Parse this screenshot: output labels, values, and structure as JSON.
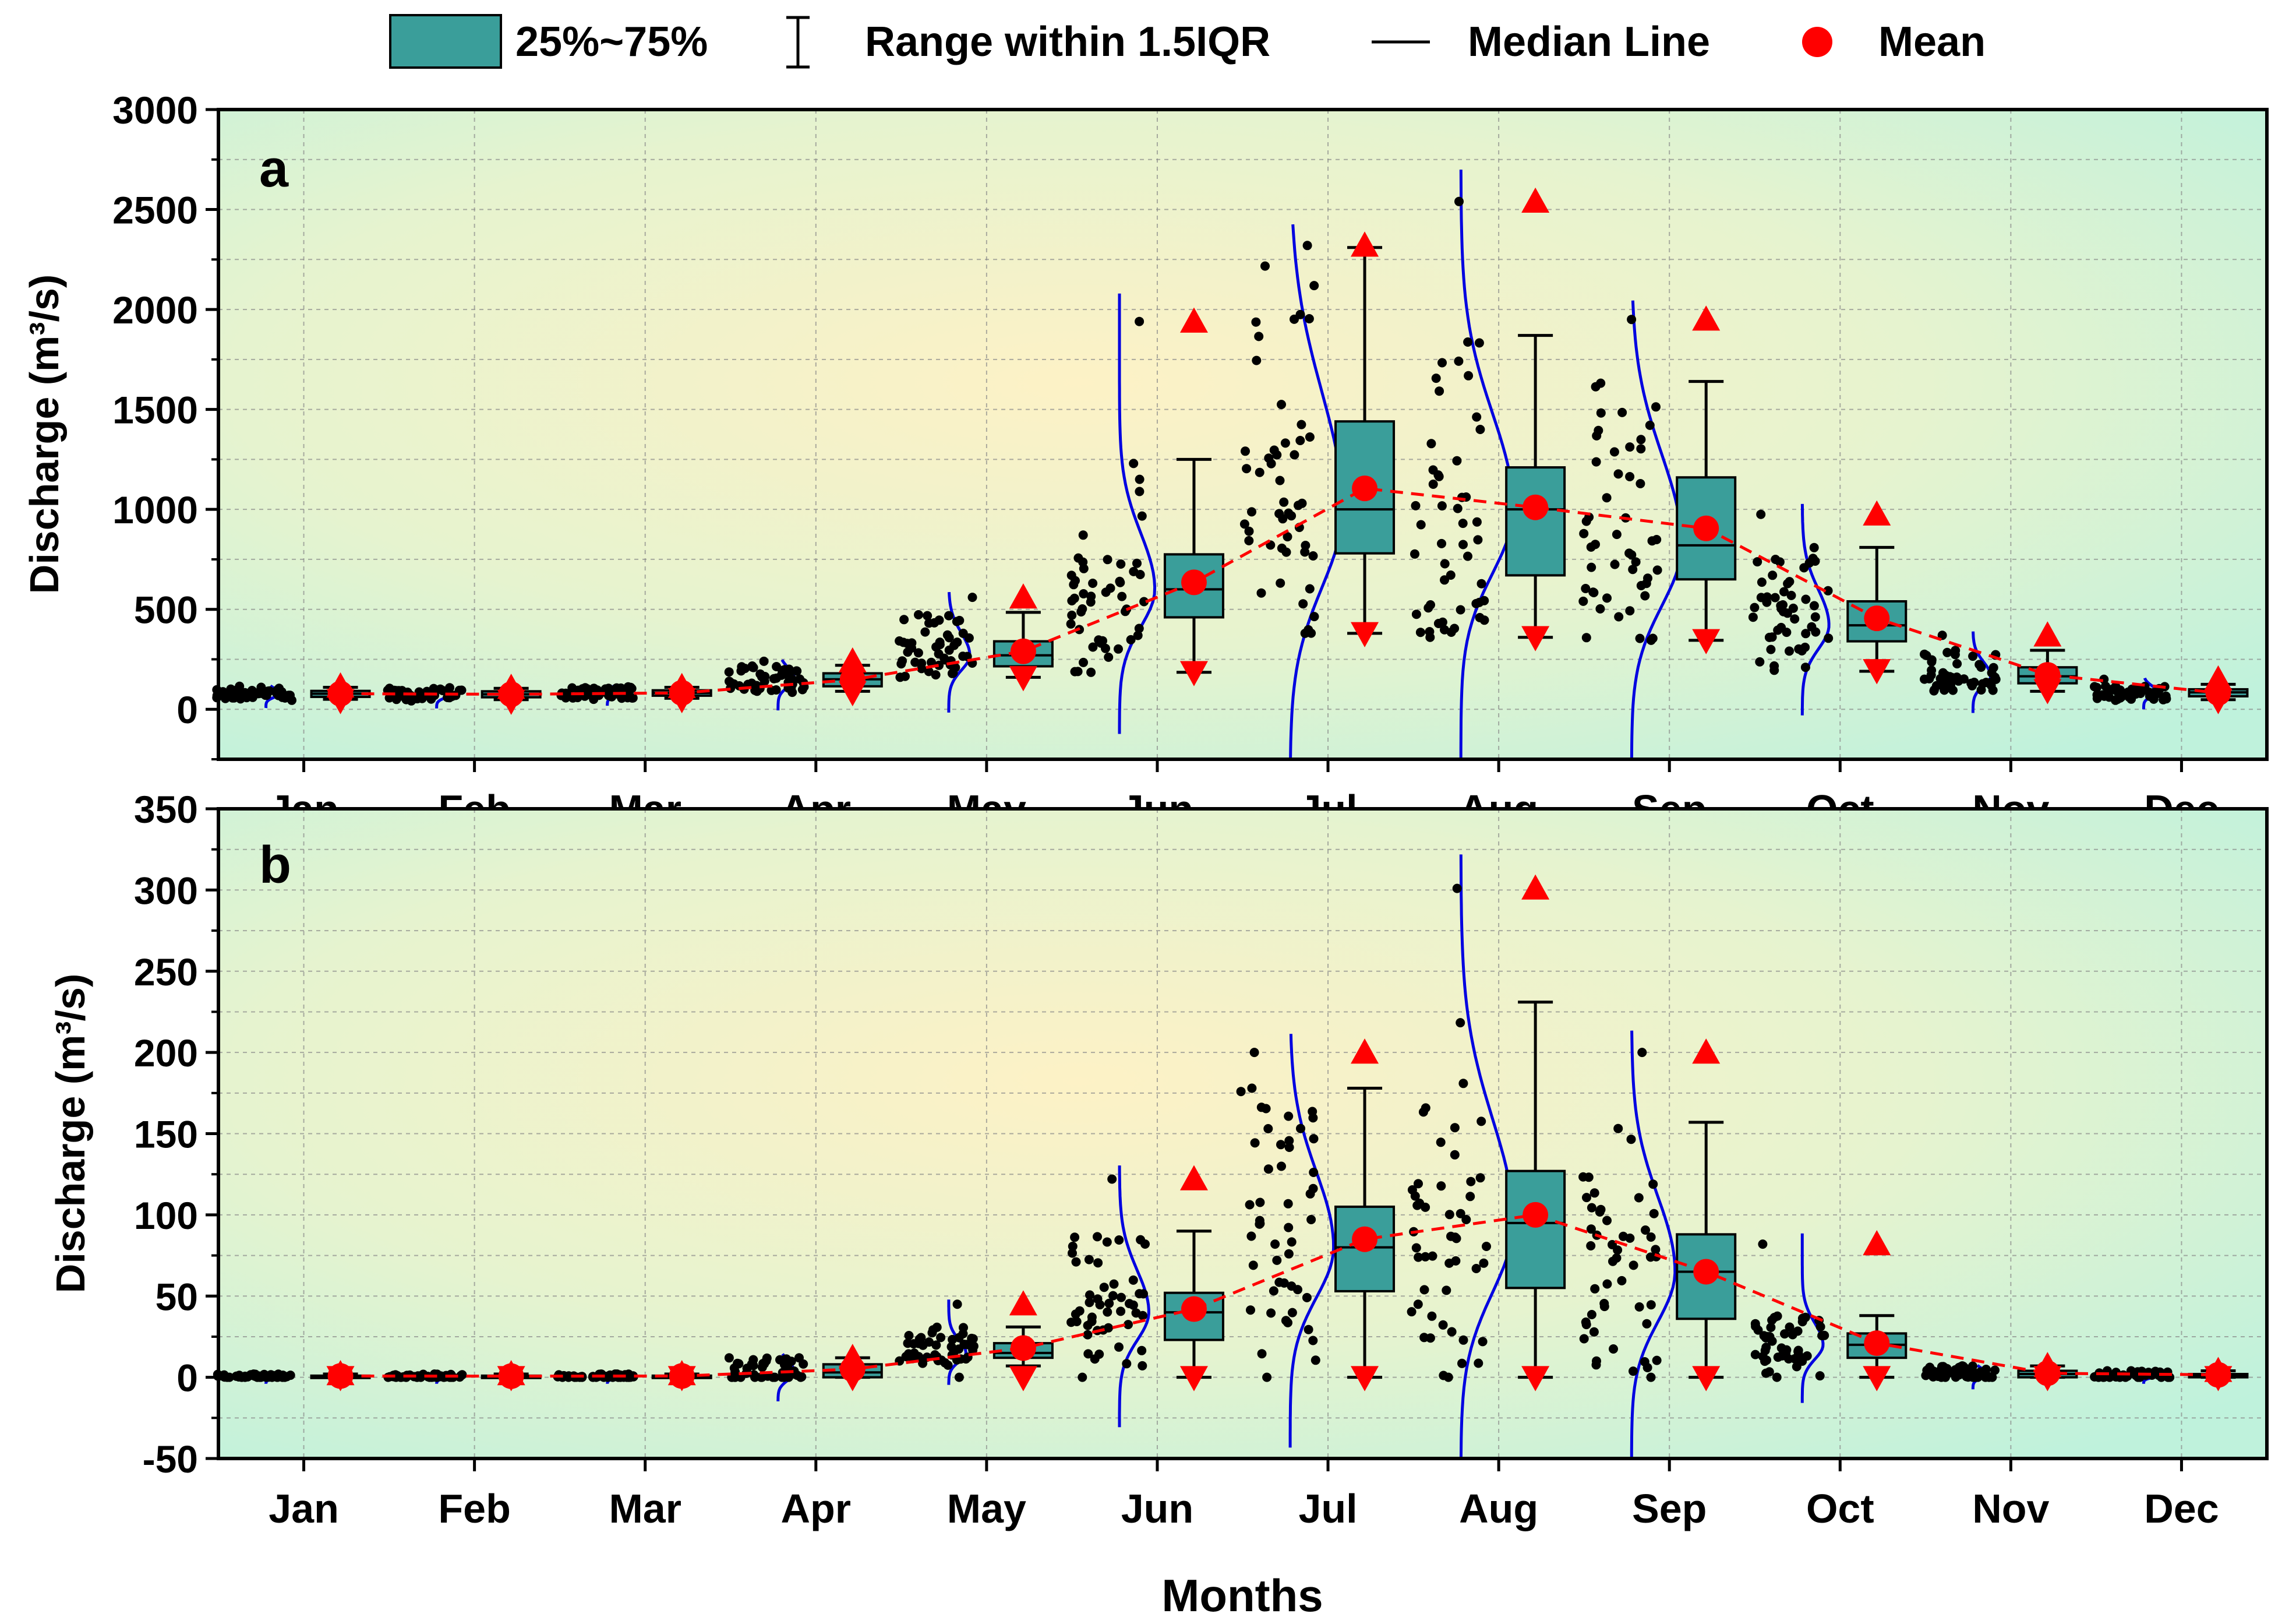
{
  "legend": {
    "box_label": "25%~75%",
    "whisker_label": "Range within 1.5IQR",
    "median_label": "Median Line",
    "mean_label": "Mean"
  },
  "colors": {
    "box": "#3a9e9a",
    "mean": "#ff0000",
    "curve": "#0000e0",
    "trend": "#ff0000",
    "bg_center": "#fdf2c6",
    "bg_edge": "#bff2dc"
  },
  "chart_data": [
    {
      "type": "box",
      "panel_label": "a",
      "title": "",
      "xlabel": "Months",
      "ylabel": "Discharge (m³/s)",
      "ylim": [
        -250,
        3000
      ],
      "yticks": [
        0,
        500,
        1000,
        1500,
        2000,
        2500,
        3000
      ],
      "categories": [
        "Jan",
        "Feb",
        "Mar",
        "Apr",
        "May",
        "Jun",
        "Jul",
        "Aug",
        "Sep",
        "Oct",
        "Nov",
        "Dec"
      ],
      "q1": [
        62,
        60,
        68,
        115,
        215,
        460,
        780,
        670,
        650,
        340,
        130,
        65
      ],
      "median": [
        78,
        75,
        82,
        150,
        270,
        600,
        1000,
        1000,
        820,
        420,
        165,
        85
      ],
      "q3": [
        92,
        90,
        95,
        180,
        340,
        775,
        1440,
        1210,
        1160,
        540,
        210,
        100
      ],
      "whisker_low": [
        50,
        48,
        55,
        90,
        160,
        185,
        380,
        360,
        345,
        190,
        90,
        48
      ],
      "whisker_high": [
        110,
        105,
        110,
        220,
        485,
        1250,
        2310,
        1870,
        1640,
        810,
        295,
        125
      ],
      "mean": [
        78,
        75,
        82,
        148,
        290,
        635,
        1105,
        1010,
        905,
        455,
        172,
        82
      ],
      "max": [
        115,
        108,
        112,
        240,
        560,
        1940,
        2320,
        2540,
        1950,
        975,
        370,
        150
      ],
      "min": [
        45,
        42,
        50,
        85,
        160,
        185,
        380,
        360,
        345,
        195,
        95,
        45
      ]
    },
    {
      "type": "box",
      "panel_label": "b",
      "title": "",
      "xlabel": "Months",
      "ylabel": "Discharge (m³/s)",
      "ylim": [
        -50,
        350
      ],
      "yticks": [
        -50,
        0,
        50,
        100,
        150,
        200,
        250,
        300,
        350
      ],
      "categories": [
        "Jan",
        "Feb",
        "Mar",
        "Apr",
        "May",
        "Jun",
        "Jul",
        "Aug",
        "Sep",
        "Oct",
        "Nov",
        "Dec"
      ],
      "q1": [
        0,
        0,
        0,
        0,
        12,
        23,
        53,
        55,
        36,
        12,
        0,
        0
      ],
      "median": [
        0.5,
        0.5,
        0.5,
        3,
        15,
        40,
        80,
        95,
        65,
        20,
        2,
        1
      ],
      "q3": [
        1,
        1,
        1,
        8,
        21,
        52,
        105,
        127,
        88,
        27,
        4,
        2
      ],
      "whisker_low": [
        0,
        0,
        0,
        0,
        7,
        0,
        0,
        0,
        0,
        0,
        0,
        0
      ],
      "whisker_high": [
        2,
        2,
        2,
        12,
        31,
        90,
        178,
        231,
        157,
        38,
        7,
        4
      ],
      "mean": [
        0.8,
        0.7,
        0.8,
        5,
        18,
        42,
        85,
        100,
        65,
        21,
        2.5,
        1.5
      ],
      "max": [
        2,
        2,
        2,
        12,
        45,
        122,
        200,
        301,
        200,
        82,
        7,
        4
      ],
      "min": [
        0,
        0,
        0,
        0,
        0,
        0,
        0,
        0,
        0,
        0,
        0,
        0
      ]
    }
  ]
}
